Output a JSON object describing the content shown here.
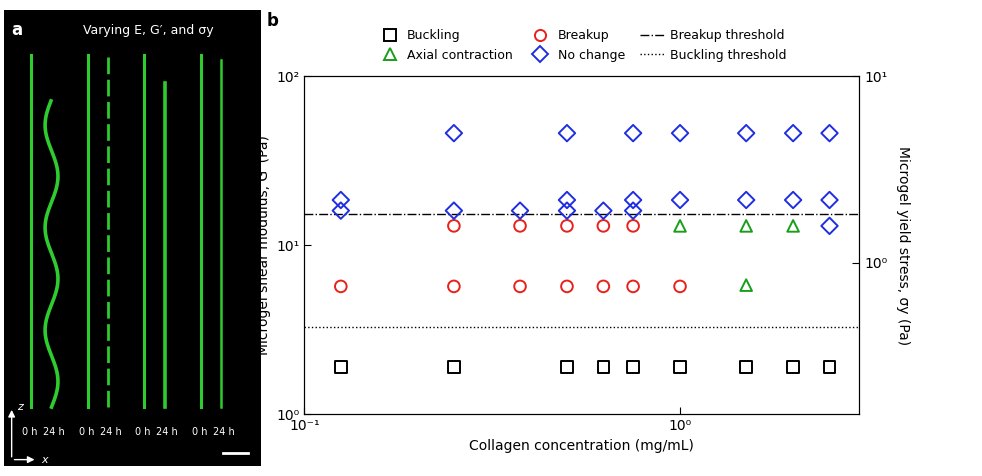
{
  "panel_a": {
    "label": "a",
    "title": "Varying E, G′, and σy",
    "pairs": [
      {
        "before": "0 h",
        "after": "24 h"
      },
      {
        "before": "0 h",
        "after": "24 h"
      },
      {
        "before": "0 h",
        "after": "24 h"
      },
      {
        "before": "0 h",
        "after": "24 h"
      }
    ],
    "axis_z": "z",
    "axis_x": "x"
  },
  "chart_data": {
    "type": "scatter",
    "panel_label": "b",
    "x_label": "Collagen concentration (mg/mL)",
    "y_label": "Microgel shear modulus, G′ (Pa)",
    "y2_label": "Microgel yield stress, σy (Pa)",
    "log": true,
    "legend": "top",
    "xlim": [
      0.1,
      3.0
    ],
    "xticks": [
      {
        "value": 0.1,
        "label": "10⁻¹"
      },
      {
        "value": 1,
        "label": "10⁰"
      }
    ],
    "ylim": [
      1,
      100
    ],
    "yticks": [
      {
        "value": 1,
        "label": "10⁰"
      },
      {
        "value": 10,
        "label": "10¹"
      },
      {
        "value": 100,
        "label": "10²"
      }
    ],
    "y2lim": [
      0.155,
      10
    ],
    "y2ticks": [
      {
        "value": 1,
        "label": "10⁰"
      },
      {
        "value": 10,
        "label": "10¹"
      }
    ],
    "series": [
      {
        "name": "Buckling",
        "type": "scatter",
        "marker": "square",
        "color": "#000000",
        "x": [
          0.125,
          0.25,
          0.5,
          0.625,
          0.75,
          1.0,
          1.5,
          2.0,
          2.5
        ],
        "values": [
          1.9,
          1.9,
          1.9,
          1.9,
          1.9,
          1.9,
          1.9,
          1.9,
          1.9
        ]
      },
      {
        "name": "Axial contraction",
        "type": "scatter",
        "marker": "triangle",
        "color": "#1a9e1a",
        "x": [
          1.0,
          1.5,
          2.0,
          1.5
        ],
        "values": [
          13,
          13,
          13,
          5.8
        ]
      },
      {
        "name": "Breakup",
        "type": "scatter",
        "marker": "circle",
        "color": "#e8211c",
        "x": [
          0.25,
          0.375,
          0.5,
          0.625,
          0.75,
          0.125,
          0.25,
          0.375,
          0.5,
          0.625,
          0.75,
          1.0
        ],
        "values": [
          13,
          13,
          13,
          13,
          13,
          5.7,
          5.7,
          5.7,
          5.7,
          5.7,
          5.7,
          5.7
        ]
      },
      {
        "name": "No change",
        "type": "scatter",
        "marker": "diamond",
        "color": "#1f2fe0",
        "x": [
          0.25,
          0.5,
          0.75,
          1.0,
          1.5,
          2.0,
          2.5,
          0.125,
          0.5,
          0.75,
          1.0,
          1.5,
          2.0,
          2.5,
          0.125,
          0.25,
          0.375,
          0.5,
          0.625,
          0.75,
          2.5
        ],
        "values": [
          46,
          46,
          46,
          46,
          46,
          46,
          46,
          18.5,
          18.5,
          18.5,
          18.5,
          18.5,
          18.5,
          18.5,
          16,
          16,
          16,
          16,
          16,
          16,
          13
        ]
      },
      {
        "name": "Breakup threshold",
        "type": "hline",
        "line_style": "dashdot",
        "color": "#000000",
        "value": 15.3
      },
      {
        "name": "Buckling threshold",
        "type": "hline",
        "line_style": "dotted",
        "color": "#000000",
        "value": 3.3
      }
    ]
  }
}
